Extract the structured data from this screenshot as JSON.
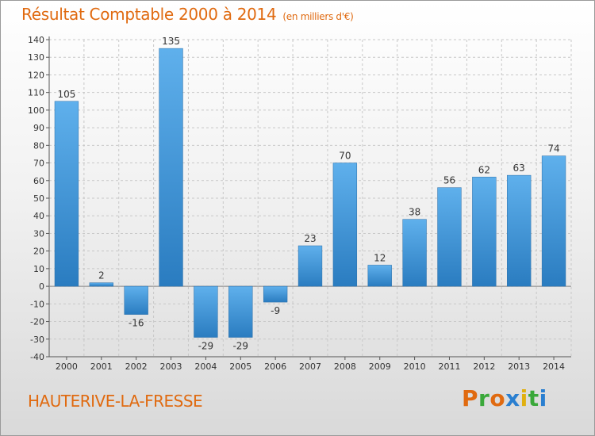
{
  "chart_data": {
    "type": "bar",
    "title": "Résultat Comptable 2000 à 2014",
    "unit_label": "(en milliers d'€)",
    "categories": [
      "2000",
      "2001",
      "2002",
      "2003",
      "2004",
      "2005",
      "2006",
      "2007",
      "2008",
      "2009",
      "2010",
      "2011",
      "2012",
      "2013",
      "2014"
    ],
    "values": [
      105,
      2,
      -16,
      135,
      -29,
      -29,
      -9,
      23,
      70,
      12,
      38,
      56,
      62,
      63,
      74
    ],
    "xlabel": "",
    "ylabel": "",
    "ylim": [
      -40,
      140
    ],
    "yticks": [
      -40,
      -30,
      -20,
      -10,
      0,
      10,
      20,
      30,
      40,
      50,
      60,
      70,
      80,
      90,
      100,
      110,
      120,
      130,
      140
    ],
    "grid": true,
    "legend": "none",
    "bar_color": "#3a8fd2"
  },
  "footer": {
    "commune": "HAUTERIVE-LA-FRESSE",
    "brand": "Proxiti",
    "brand_colors": [
      "#e06a10",
      "#3aa83a",
      "#e06a10",
      "#2a7fd0",
      "#e0b010",
      "#3aa83a",
      "#2a7fd0"
    ]
  }
}
